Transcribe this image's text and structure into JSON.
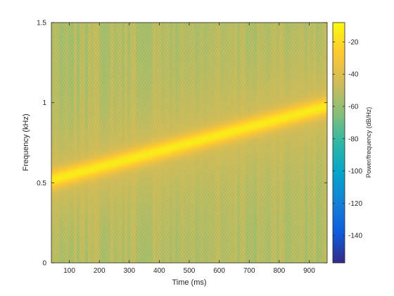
{
  "chart_data": {
    "type": "heatmap",
    "title": "",
    "xlabel": "Time (ms)",
    "ylabel": "Frequency (kHz)",
    "xlim": [
      40,
      960
    ],
    "ylim": [
      0,
      1.5
    ],
    "x_ticks": [
      100,
      200,
      300,
      400,
      500,
      600,
      700,
      800,
      900
    ],
    "y_ticks": [
      0,
      0.5,
      1,
      1.5
    ],
    "y_tick_labels": [
      "0",
      "0.5",
      "1",
      "1.5"
    ],
    "colorbar": {
      "label": "Power/frequency (dB/Hz)",
      "clim": [
        -157,
        -8
      ],
      "ticks": [
        -20,
        -40,
        -60,
        -80,
        -100,
        -120,
        -140
      ],
      "colormap": "parula"
    },
    "signal": {
      "description_type": "linear chirp",
      "start": {
        "t_ms": 40,
        "f_khz": 0.52
      },
      "end": {
        "t_ms": 960,
        "f_khz": 0.98
      },
      "peak_db": -14,
      "background_db": [
        -65,
        -40
      ]
    },
    "colors": {
      "parula": [
        "#352a87",
        "#0f5cdd",
        "#1481d6",
        "#06a4ca",
        "#2eb7a4",
        "#87bf77",
        "#d1bb59",
        "#fec832",
        "#f9fb0e"
      ]
    }
  }
}
